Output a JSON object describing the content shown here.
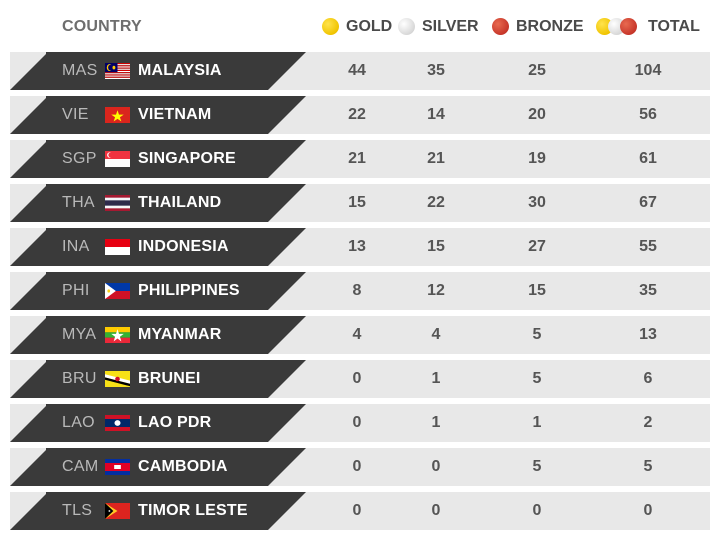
{
  "header": {
    "country": "COUNTRY",
    "gold": "GOLD",
    "silver": "SILVER",
    "bronze": "BRONZE",
    "total": "TOTAL"
  },
  "colors": {
    "gold_medal": "#f0c400",
    "silver_medal": "#d8d8d8",
    "bronze_medal": "#c7362a",
    "country_plate": "#3a3a3a",
    "row_background": "#e8e8e8"
  },
  "rows": [
    {
      "code": "MAS",
      "name": "MALAYSIA",
      "flag": "malaysia-flag",
      "gold": "44",
      "silver": "35",
      "bronze": "25",
      "total": "104"
    },
    {
      "code": "VIE",
      "name": "VIETNAM",
      "flag": "vietnam-flag",
      "gold": "22",
      "silver": "14",
      "bronze": "20",
      "total": "56"
    },
    {
      "code": "SGP",
      "name": "SINGAPORE",
      "flag": "singapore-flag",
      "gold": "21",
      "silver": "21",
      "bronze": "19",
      "total": "61"
    },
    {
      "code": "THA",
      "name": "THAILAND",
      "flag": "thailand-flag",
      "gold": "15",
      "silver": "22",
      "bronze": "30",
      "total": "67"
    },
    {
      "code": "INA",
      "name": "INDONESIA",
      "flag": "indonesia-flag",
      "gold": "13",
      "silver": "15",
      "bronze": "27",
      "total": "55"
    },
    {
      "code": "PHI",
      "name": "PHILIPPINES",
      "flag": "philippines-flag",
      "gold": "8",
      "silver": "12",
      "bronze": "15",
      "total": "35"
    },
    {
      "code": "MYA",
      "name": "MYANMAR",
      "flag": "myanmar-flag",
      "gold": "4",
      "silver": "4",
      "bronze": "5",
      "total": "13"
    },
    {
      "code": "BRU",
      "name": "BRUNEI",
      "flag": "brunei-flag",
      "gold": "0",
      "silver": "1",
      "bronze": "5",
      "total": "6"
    },
    {
      "code": "LAO",
      "name": "LAO PDR",
      "flag": "laos-flag",
      "gold": "0",
      "silver": "1",
      "bronze": "1",
      "total": "2"
    },
    {
      "code": "CAM",
      "name": "CAMBODIA",
      "flag": "cambodia-flag",
      "gold": "0",
      "silver": "0",
      "bronze": "5",
      "total": "5"
    },
    {
      "code": "TLS",
      "name": "TIMOR LESTE",
      "flag": "timor-leste-flag",
      "gold": "0",
      "silver": "0",
      "bronze": "0",
      "total": "0"
    }
  ]
}
